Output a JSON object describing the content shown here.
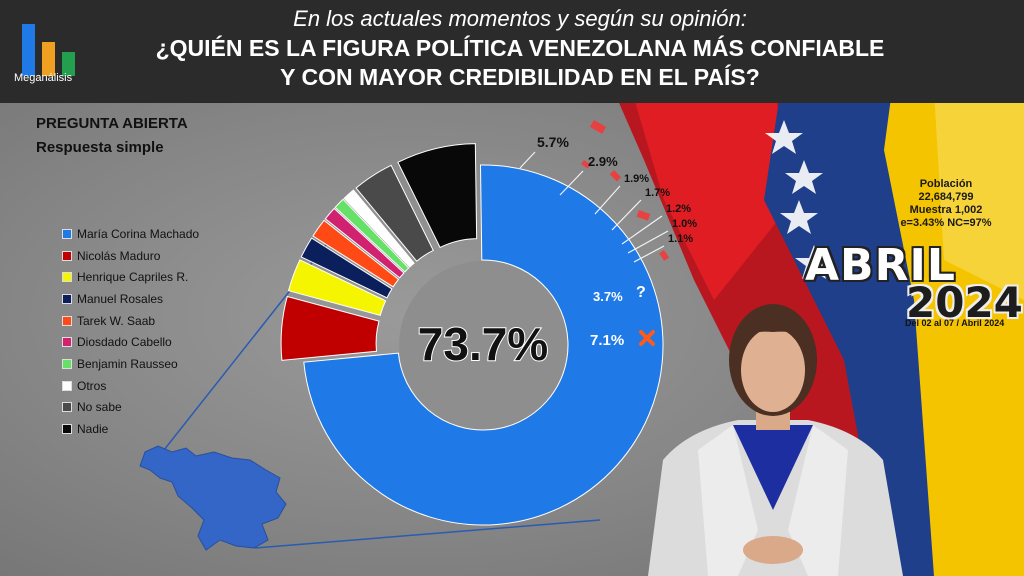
{
  "header": {
    "brand": "Meganálisis",
    "subtitle": "En los actuales momentos y según su opinión:",
    "title_line1": "¿QUIÉN ES LA FIGURA POLÍTICA VENEZOLANA MÁS CONFIABLE",
    "title_line2": "Y CON MAYOR CREDIBILIDAD EN EL PAÍS?"
  },
  "question_type": {
    "line1": "PREGUNTA  ABIERTA",
    "line2": "Respuesta simple"
  },
  "survey_info": {
    "line1": "Población",
    "line2": "22,684,799",
    "line3": "Muestra 1,002",
    "line4": "e=3.43%  NC=97%"
  },
  "period": {
    "month": "ABRIL",
    "year": "2024",
    "dates": "Del 02 al 07 / Abril 2024"
  },
  "colors": {
    "header_bg": "#2b2b2b",
    "flag_yellow": "#f5c400",
    "flag_blue": "#1f3f8a",
    "flag_red": "#e01c24"
  },
  "icons": {
    "logo": "bar-chart-logo",
    "venezuela_map": "venezuela-map",
    "unknown": "question-mark",
    "none": "x-mark"
  },
  "chart_data": {
    "type": "pie",
    "subtype": "donut",
    "categories": [
      "María Corina Machado",
      "Nicolás Maduro",
      "Henrique Capriles R.",
      "Manuel Rosales",
      "Tarek W. Saab",
      "Diosdado Cabello",
      "Benjamin Rausseo",
      "Otros",
      "No sabe",
      "Nadie"
    ],
    "values": [
      73.7,
      5.7,
      2.9,
      1.9,
      1.7,
      1.2,
      1.0,
      1.1,
      3.7,
      7.1
    ],
    "value_labels": [
      "73.7%",
      "5.7%",
      "2.9%",
      "1.9%",
      "1.7%",
      "1.2%",
      "1.0%",
      "1.1%",
      "3.7%",
      "7.1%"
    ],
    "colors": [
      "#1f7ae8",
      "#c00000",
      "#f5f500",
      "#0b1f5c",
      "#ff4a16",
      "#d0226e",
      "#66e066",
      "#ffffff",
      "#4a4a4a",
      "#080808"
    ],
    "legend_position": "left",
    "title": "",
    "xlabel": "",
    "ylabel": ""
  }
}
